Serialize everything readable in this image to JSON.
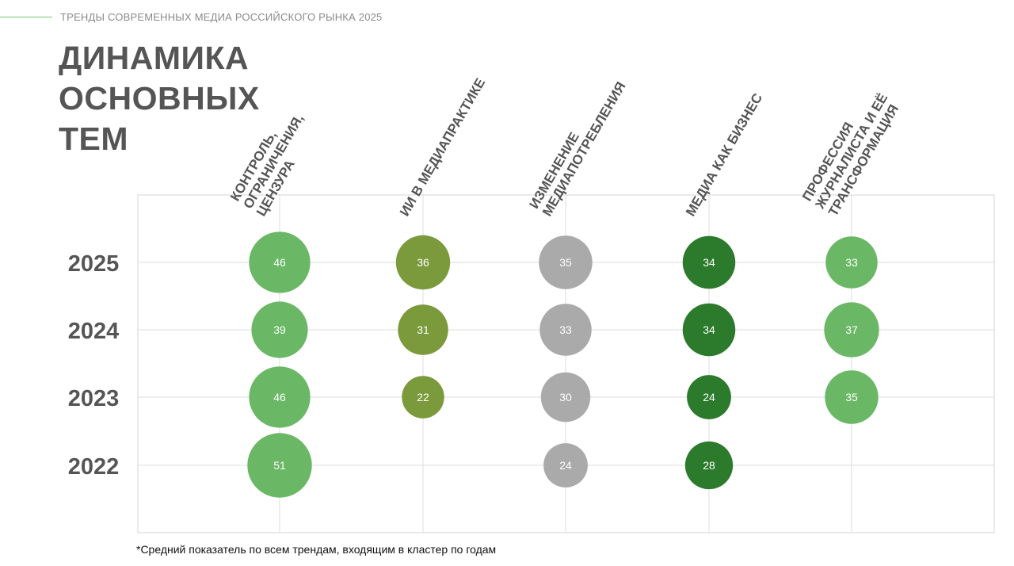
{
  "header": {
    "title": "ТРЕНДЫ СОВРЕМЕННЫХ МЕДИА РОССИЙСКОГО РЫНКА 2025"
  },
  "page": {
    "title_lines": [
      "ДИНАМИКА",
      "ОСНОВНЫХ",
      "ТЕМ"
    ]
  },
  "footnote": "*Средний показатель по всем трендам, входящим в кластер по годам",
  "chart_data": {
    "type": "bubble",
    "years": [
      "2025",
      "2024",
      "2023",
      "2022"
    ],
    "categories": [
      {
        "lines": [
          "КОНТРОЛЬ,",
          "ОГРАНИЧЕНИЯ,",
          "ЦЕНЗУРА"
        ],
        "color": "#6ab866",
        "values": [
          46,
          39,
          46,
          51
        ]
      },
      {
        "lines": [
          "ИИ В МЕДИАПРАКТИКЕ"
        ],
        "color": "#7a9a3c",
        "values": [
          36,
          31,
          22,
          null
        ]
      },
      {
        "lines": [
          "ИЗМЕНЕНИЕ",
          "МЕДИАПОТРЕБЛЕНИЯ"
        ],
        "color": "#aaaaaa",
        "values": [
          35,
          33,
          30,
          24
        ]
      },
      {
        "lines": [
          "МЕДИА КАК БИЗНЕС"
        ],
        "color": "#2c7a2c",
        "values": [
          34,
          34,
          24,
          28
        ]
      },
      {
        "lines": [
          "ПРОФЕССИЯ",
          "ЖУРНАЛИСТА И ЕЁ",
          "ТРАНСФОРМАЦИЯ"
        ],
        "color": "#6ab866",
        "values": [
          33,
          37,
          35,
          null
        ]
      }
    ],
    "grid": true
  }
}
